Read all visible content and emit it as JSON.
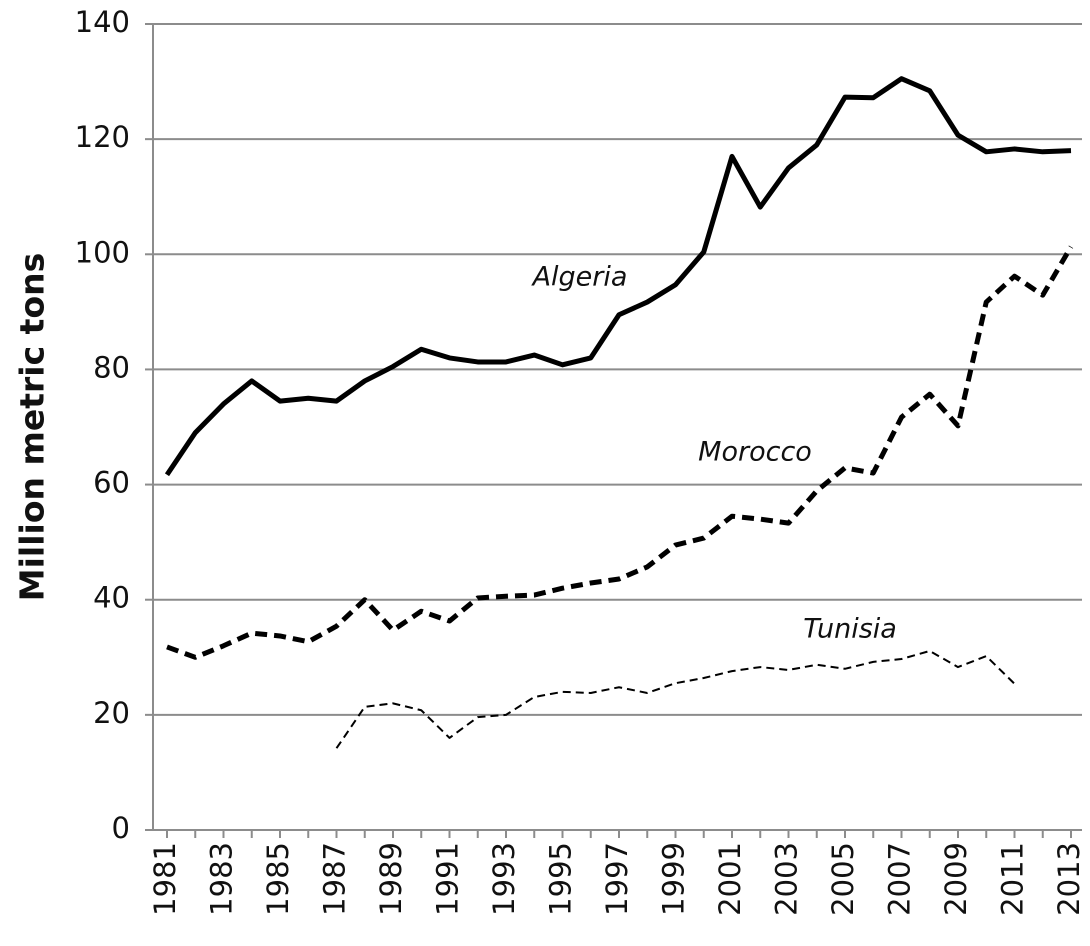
{
  "chart_data": {
    "type": "line",
    "y_label": "Million metric tons",
    "categories": [
      "1981",
      null,
      "1983",
      null,
      "1985",
      null,
      "1987",
      null,
      "1989",
      null,
      "1991",
      null,
      "1993",
      null,
      "1995",
      null,
      "1997",
      null,
      "1999",
      null,
      "2001",
      null,
      "2003",
      null,
      "2005",
      null,
      "2007",
      null,
      "2009",
      null,
      "2011",
      null,
      "2013"
    ],
    "series": [
      {
        "name": "Algeria",
        "color": "#000000",
        "style": "solid",
        "linewidth": 5,
        "values": [
          61.7,
          69,
          74,
          78,
          74.5,
          75,
          74.5,
          78,
          80.5,
          83.5,
          82,
          81.3,
          81.3,
          82.5,
          80.8,
          82,
          89.5,
          91.7,
          94.7,
          100.4,
          117,
          108.2,
          115,
          119,
          127.3,
          127.2,
          130.5,
          128.4,
          120.7,
          117.8,
          118.3,
          117.8,
          118
        ]
      },
      {
        "name": "Morocco",
        "color": "#000000",
        "style": "dashed",
        "linewidth": 5,
        "values": [
          31.8,
          30,
          32,
          34.2,
          33.7,
          32.7,
          35.4,
          40,
          34.7,
          38,
          36.3,
          40.3,
          40.6,
          40.8,
          42,
          42.9,
          43.6,
          45.7,
          49.5,
          50.7,
          54.5,
          54,
          53.3,
          58.9,
          62.9,
          62,
          71.7,
          75.7,
          70.2,
          91.7,
          96.2,
          92.9,
          101.3
        ]
      },
      {
        "name": "Tunisia",
        "color": "#000000",
        "style": "dashed",
        "linewidth": 2,
        "values": [
          null,
          null,
          null,
          null,
          null,
          null,
          14.2,
          21.4,
          22,
          20.8,
          16,
          19.6,
          20,
          23.1,
          24,
          23.8,
          24.8,
          23.8,
          25.5,
          26.4,
          27.6,
          28.3,
          27.8,
          28.7,
          28,
          29.2,
          29.7,
          31.1,
          28.3,
          30.2,
          25.4,
          null,
          null
        ]
      }
    ],
    "ylim": [
      0,
      140
    ],
    "yticks": [
      0,
      20,
      40,
      60,
      80,
      100,
      120,
      140
    ],
    "grid": true
  }
}
